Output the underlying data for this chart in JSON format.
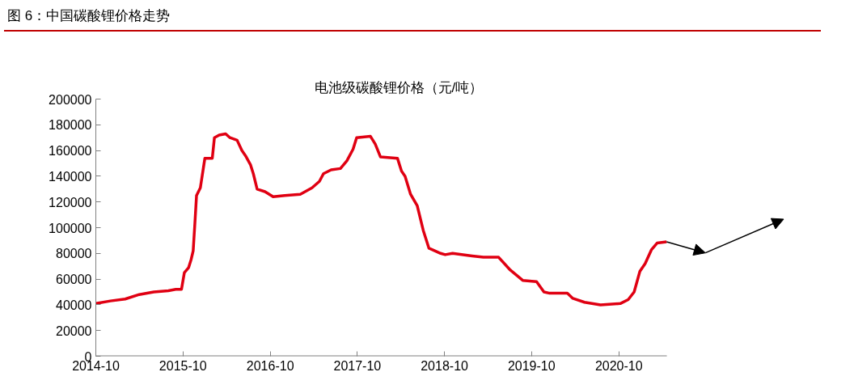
{
  "chart_data": {
    "type": "line",
    "title": "图 6：中国碳酸锂价格走势",
    "subtitle": "电池级碳酸锂价格（元/吨）",
    "x": [
      "2014-10-01",
      "2014-12-01",
      "2015-02-01",
      "2015-04-01",
      "2015-06-01",
      "2015-08-01",
      "2015-09-01",
      "2015-09-25",
      "2015-10-07",
      "2015-10-25",
      "2015-11-04",
      "2015-11-13",
      "2015-11-19",
      "2015-11-27",
      "2015-12-13",
      "2016-01-01",
      "2016-02-01",
      "2016-02-10",
      "2016-03-01",
      "2016-03-28",
      "2016-04-15",
      "2016-05-15",
      "2016-06-04",
      "2016-06-19",
      "2016-07-10",
      "2016-07-22",
      "2016-08-07",
      "2016-09-09",
      "2016-10-13",
      "2016-12-01",
      "2017-02-04",
      "2017-03-25",
      "2017-04-25",
      "2017-05-12",
      "2017-06-13",
      "2017-07-22",
      "2017-08-18",
      "2017-09-13",
      "2017-09-28",
      "2017-11-25",
      "2017-12-15",
      "2018-01-06",
      "2018-03-18",
      "2018-04-04",
      "2018-04-19",
      "2018-05-12",
      "2018-06-09",
      "2018-07-04",
      "2018-07-28",
      "2018-09-15",
      "2018-10-04",
      "2018-11-04",
      "2019-01-25",
      "2019-03-13",
      "2019-05-16",
      "2019-07-04",
      "2019-08-25",
      "2019-10-22",
      "2019-11-22",
      "2019-12-16",
      "2020-02-28",
      "2020-03-22",
      "2020-05-10",
      "2020-07-16",
      "2020-10-07",
      "2020-11-09",
      "2020-12-04",
      "2020-12-28",
      "2021-01-19",
      "2021-02-15",
      "2021-03-10",
      "2021-04-19"
    ],
    "series": [
      {
        "color": "#e00012",
        "values": [
          41000,
          43000,
          44500,
          48000,
          50000,
          51000,
          52000,
          52000,
          65000,
          69000,
          75000,
          82000,
          100000,
          125000,
          131000,
          154000,
          154000,
          170000,
          172000,
          173000,
          170000,
          168000,
          160000,
          156000,
          149000,
          142000,
          130000,
          128000,
          124000,
          125000,
          126000,
          131000,
          136000,
          142000,
          145000,
          146000,
          152000,
          161000,
          170000,
          171000,
          165000,
          155000,
          154000,
          144000,
          140000,
          126000,
          117000,
          98000,
          84000,
          80000,
          79000,
          80000,
          78000,
          77000,
          77000,
          67000,
          59000,
          58000,
          50000,
          49000,
          49000,
          45000,
          42000,
          40000,
          41000,
          44000,
          50000,
          66000,
          72000,
          83000,
          88000,
          89000
        ]
      }
    ],
    "xlim": [
      "2014-10-01",
      "2021-04-20"
    ],
    "xticks": [
      {
        "value": "2014-10-01",
        "label": "2014-10"
      },
      {
        "value": "2015-10-01",
        "label": "2015-10"
      },
      {
        "value": "2016-10-01",
        "label": "2016-10"
      },
      {
        "value": "2017-10-01",
        "label": "2017-10"
      },
      {
        "value": "2018-10-01",
        "label": "2018-10"
      },
      {
        "value": "2019-10-01",
        "label": "2019-10"
      },
      {
        "value": "2020-10-01",
        "label": "2020-10"
      }
    ],
    "ylim": [
      0,
      200000
    ],
    "yticks": [
      0,
      20000,
      40000,
      60000,
      80000,
      100000,
      120000,
      140000,
      160000,
      180000,
      200000
    ],
    "grid": false,
    "marker": "none",
    "line_style": "solid"
  }
}
